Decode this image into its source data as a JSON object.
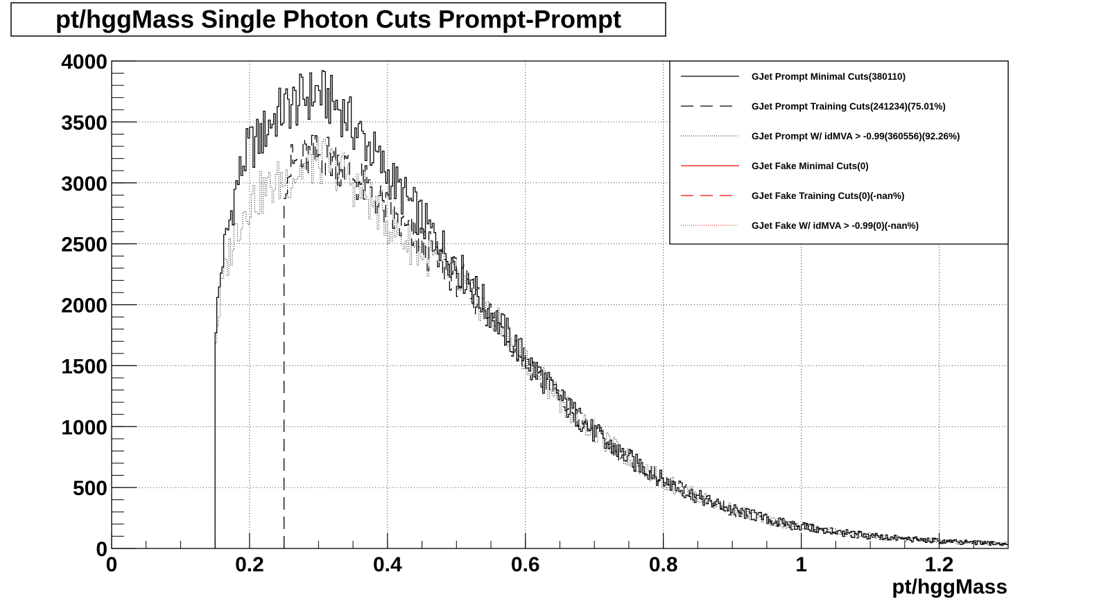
{
  "chart_data": {
    "type": "line",
    "title": "pt/hggMass Single Photon Cuts Prompt-Prompt",
    "xlabel": "pt/hggMass",
    "ylabel": "",
    "xlim": [
      0,
      1.3
    ],
    "ylim": [
      0,
      4000
    ],
    "x_ticks": [
      0,
      0.2,
      0.4,
      0.6,
      0.8,
      1,
      1.2
    ],
    "x_tick_labels": [
      "0",
      "0.2",
      "0.4",
      "0.6",
      "0.8",
      "1",
      "1.2"
    ],
    "y_ticks": [
      0,
      500,
      1000,
      1500,
      2000,
      2500,
      3000,
      3500,
      4000
    ],
    "y_tick_labels": [
      "0",
      "500",
      "1000",
      "1500",
      "2000",
      "2500",
      "3000",
      "3500",
      "4000"
    ],
    "grid": true,
    "legend_position": "top-right",
    "bin_width": 0.0025,
    "series": [
      {
        "name": "GJet Prompt Minimal Cuts(380110)",
        "color": "#000000",
        "style": "solid",
        "x": [
          0.15,
          0.155,
          0.16,
          0.17,
          0.18,
          0.19,
          0.2,
          0.21,
          0.22,
          0.23,
          0.24,
          0.25,
          0.26,
          0.27,
          0.28,
          0.29,
          0.3,
          0.31,
          0.32,
          0.33,
          0.34,
          0.35,
          0.36,
          0.37,
          0.38,
          0.39,
          0.4,
          0.42,
          0.44,
          0.46,
          0.48,
          0.5,
          0.52,
          0.54,
          0.56,
          0.58,
          0.6,
          0.62,
          0.64,
          0.66,
          0.68,
          0.7,
          0.72,
          0.74,
          0.76,
          0.78,
          0.8,
          0.82,
          0.84,
          0.86,
          0.88,
          0.9,
          0.92,
          0.94,
          0.96,
          0.98,
          1.0,
          1.02,
          1.04,
          1.06,
          1.08,
          1.1,
          1.12,
          1.14,
          1.16,
          1.18,
          1.2,
          1.22,
          1.24,
          1.26,
          1.28,
          1.3
        ],
        "values": [
          1800,
          2050,
          2350,
          2650,
          2950,
          3150,
          3300,
          3330,
          3400,
          3500,
          3560,
          3600,
          3640,
          3660,
          3700,
          3720,
          3760,
          3700,
          3660,
          3620,
          3560,
          3460,
          3400,
          3330,
          3250,
          3150,
          3080,
          2920,
          2780,
          2620,
          2480,
          2320,
          2170,
          2010,
          1860,
          1710,
          1560,
          1430,
          1300,
          1170,
          1060,
          950,
          860,
          780,
          700,
          630,
          560,
          500,
          450,
          400,
          360,
          320,
          285,
          255,
          225,
          200,
          180,
          160,
          143,
          128,
          114,
          102,
          92,
          83,
          75,
          68,
          61,
          55,
          50,
          46,
          42,
          40
        ]
      },
      {
        "name": "GJet Prompt Training Cuts(241234)(75.01%)",
        "color": "#000000",
        "style": "dashed",
        "x": [
          0.25,
          0.26,
          0.27,
          0.28,
          0.29,
          0.3,
          0.31,
          0.32,
          0.33,
          0.34,
          0.35,
          0.36,
          0.37,
          0.38,
          0.39,
          0.4,
          0.42,
          0.44,
          0.46,
          0.48,
          0.5,
          0.52,
          0.54,
          0.56,
          0.58,
          0.6,
          0.62,
          0.64,
          0.66,
          0.68,
          0.7,
          0.72,
          0.74,
          0.76,
          0.78,
          0.8,
          0.82,
          0.84,
          0.86,
          0.88,
          0.9,
          0.92,
          0.94,
          0.96,
          0.98,
          1.0,
          1.02,
          1.04,
          1.06,
          1.08,
          1.1,
          1.12,
          1.14,
          1.16,
          1.18,
          1.2,
          1.22,
          1.24,
          1.26,
          1.28,
          1.3
        ],
        "values": [
          3050,
          3130,
          3170,
          3190,
          3200,
          3220,
          3230,
          3200,
          3170,
          3120,
          3060,
          3000,
          2950,
          2890,
          2830,
          2760,
          2640,
          2540,
          2440,
          2340,
          2230,
          2110,
          1980,
          1840,
          1700,
          1560,
          1430,
          1300,
          1170,
          1060,
          950,
          860,
          780,
          700,
          630,
          560,
          500,
          450,
          400,
          360,
          320,
          285,
          255,
          225,
          200,
          180,
          160,
          143,
          128,
          114,
          102,
          92,
          83,
          75,
          68,
          61,
          55,
          50,
          46,
          42,
          40
        ]
      },
      {
        "name": "GJet Prompt W/ idMVA > -0.99(360556)(92.26%)",
        "color": "#000000",
        "style": "dotted",
        "x": [
          0.15,
          0.155,
          0.16,
          0.17,
          0.18,
          0.19,
          0.2,
          0.21,
          0.22,
          0.23,
          0.24,
          0.25,
          0.26,
          0.27,
          0.28,
          0.29,
          0.3,
          0.31,
          0.32,
          0.33,
          0.34,
          0.35,
          0.36,
          0.37,
          0.38,
          0.39,
          0.4,
          0.42,
          0.44,
          0.46,
          0.48,
          0.5,
          0.52,
          0.54,
          0.56,
          0.58,
          0.6,
          0.62,
          0.64,
          0.66,
          0.68,
          0.7,
          0.72,
          0.74,
          0.76,
          0.78,
          0.8,
          0.82,
          0.84,
          0.86,
          0.88,
          0.9,
          0.92,
          0.94,
          0.96,
          0.98,
          1.0,
          1.02,
          1.04,
          1.06,
          1.08,
          1.1,
          1.12,
          1.14,
          1.16,
          1.18,
          1.2,
          1.22,
          1.24,
          1.26,
          1.28,
          1.3
        ],
        "values": [
          1700,
          1900,
          2150,
          2400,
          2600,
          2750,
          2850,
          2880,
          2920,
          2960,
          3000,
          3030,
          3060,
          3090,
          3120,
          3150,
          3180,
          3170,
          3140,
          3110,
          3060,
          3000,
          2950,
          2890,
          2830,
          2760,
          2680,
          2560,
          2470,
          2390,
          2310,
          2210,
          2100,
          1980,
          1840,
          1700,
          1560,
          1430,
          1300,
          1170,
          1060,
          950,
          860,
          780,
          700,
          630,
          560,
          500,
          450,
          400,
          360,
          320,
          285,
          255,
          225,
          200,
          180,
          160,
          143,
          128,
          114,
          102,
          92,
          83,
          75,
          68,
          61,
          55,
          50,
          46,
          42,
          40
        ]
      },
      {
        "name": "GJet Fake Minimal Cuts(0)",
        "color": "#ff0000",
        "style": "solid",
        "x": [],
        "values": []
      },
      {
        "name": "GJet Fake Training Cuts(0)(-nan%)",
        "color": "#ff0000",
        "style": "dashed",
        "x": [],
        "values": []
      },
      {
        "name": "GJet Fake W/ idMVA > -0.99(0)(-nan%)",
        "color": "#ff0000",
        "style": "dotted",
        "x": [],
        "values": []
      }
    ]
  }
}
